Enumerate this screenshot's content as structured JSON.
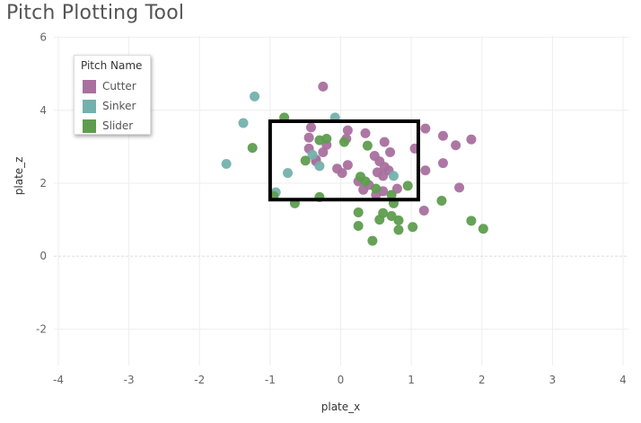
{
  "page": {
    "title": "Pitch Plotting Tool"
  },
  "chart_data": {
    "type": "scatter",
    "title": "Pitch Plotting Tool",
    "xlabel": "plate_x",
    "ylabel": "plate_z",
    "xlim": [
      -4,
      4
    ],
    "ylim": [
      -3,
      7
    ],
    "x_ticks": [
      "-4",
      "-3",
      "-2",
      "-1",
      "0",
      "1",
      "2",
      "3",
      "4"
    ],
    "y_ticks": [
      "6",
      "4",
      "2",
      "0",
      "-2"
    ],
    "grid": true,
    "strike_zone": {
      "x": [
        -1.0,
        1.1
      ],
      "z": [
        1.55,
        3.7
      ]
    },
    "legend": {
      "title": "Pitch Name",
      "position": "top-left"
    },
    "series": [
      {
        "name": "Cutter",
        "color": "#a9709e",
        "points": [
          [
            -0.25,
            4.65
          ],
          [
            -0.42,
            3.53
          ],
          [
            0.1,
            3.45
          ],
          [
            0.08,
            3.22
          ],
          [
            0.35,
            3.37
          ],
          [
            0.62,
            3.13
          ],
          [
            1.2,
            3.5
          ],
          [
            1.45,
            3.3
          ],
          [
            1.63,
            3.04
          ],
          [
            1.85,
            3.2
          ],
          [
            -0.45,
            3.25
          ],
          [
            -0.2,
            3.05
          ],
          [
            -0.25,
            2.85
          ],
          [
            0.7,
            2.85
          ],
          [
            1.05,
            2.95
          ],
          [
            -0.45,
            2.95
          ],
          [
            -0.35,
            2.65
          ],
          [
            0.1,
            2.5
          ],
          [
            0.48,
            2.75
          ],
          [
            0.55,
            2.6
          ],
          [
            0.62,
            2.45
          ],
          [
            0.68,
            2.35
          ],
          [
            0.52,
            2.3
          ],
          [
            0.6,
            2.2
          ],
          [
            -0.35,
            2.6
          ],
          [
            -0.05,
            2.4
          ],
          [
            0.02,
            2.28
          ],
          [
            1.2,
            2.35
          ],
          [
            1.45,
            2.55
          ],
          [
            0.25,
            2.05
          ],
          [
            0.32,
            1.82
          ],
          [
            0.5,
            1.68
          ],
          [
            0.6,
            1.78
          ],
          [
            0.8,
            1.85
          ],
          [
            1.68,
            1.88
          ],
          [
            1.18,
            1.25
          ],
          [
            0.4,
            1.95
          ]
        ]
      },
      {
        "name": "Sinker",
        "color": "#74b1ad",
        "points": [
          [
            -1.22,
            4.38
          ],
          [
            -1.38,
            3.65
          ],
          [
            -0.08,
            3.8
          ],
          [
            -1.62,
            2.53
          ],
          [
            -0.75,
            2.28
          ],
          [
            -0.3,
            2.47
          ],
          [
            0.75,
            2.2
          ],
          [
            -0.92,
            1.75
          ],
          [
            -0.4,
            2.78
          ]
        ]
      },
      {
        "name": "Slider",
        "color": "#5e9d4e",
        "points": [
          [
            -0.8,
            3.8
          ],
          [
            -1.25,
            2.97
          ],
          [
            -0.3,
            3.18
          ],
          [
            0.05,
            3.13
          ],
          [
            0.38,
            3.03
          ],
          [
            -0.2,
            3.22
          ],
          [
            -0.5,
            2.62
          ],
          [
            0.28,
            2.18
          ],
          [
            0.5,
            1.85
          ],
          [
            0.95,
            1.93
          ],
          [
            0.72,
            1.68
          ],
          [
            -0.95,
            1.65
          ],
          [
            -0.65,
            1.45
          ],
          [
            -0.3,
            1.62
          ],
          [
            0.25,
            1.2
          ],
          [
            0.6,
            1.18
          ],
          [
            0.72,
            1.1
          ],
          [
            0.82,
            0.98
          ],
          [
            0.55,
            1.0
          ],
          [
            0.25,
            0.83
          ],
          [
            0.45,
            0.42
          ],
          [
            0.82,
            0.72
          ],
          [
            1.02,
            0.8
          ],
          [
            1.43,
            1.52
          ],
          [
            1.85,
            0.97
          ],
          [
            2.02,
            0.75
          ],
          [
            0.35,
            2.05
          ],
          [
            0.75,
            1.45
          ]
        ]
      }
    ]
  }
}
